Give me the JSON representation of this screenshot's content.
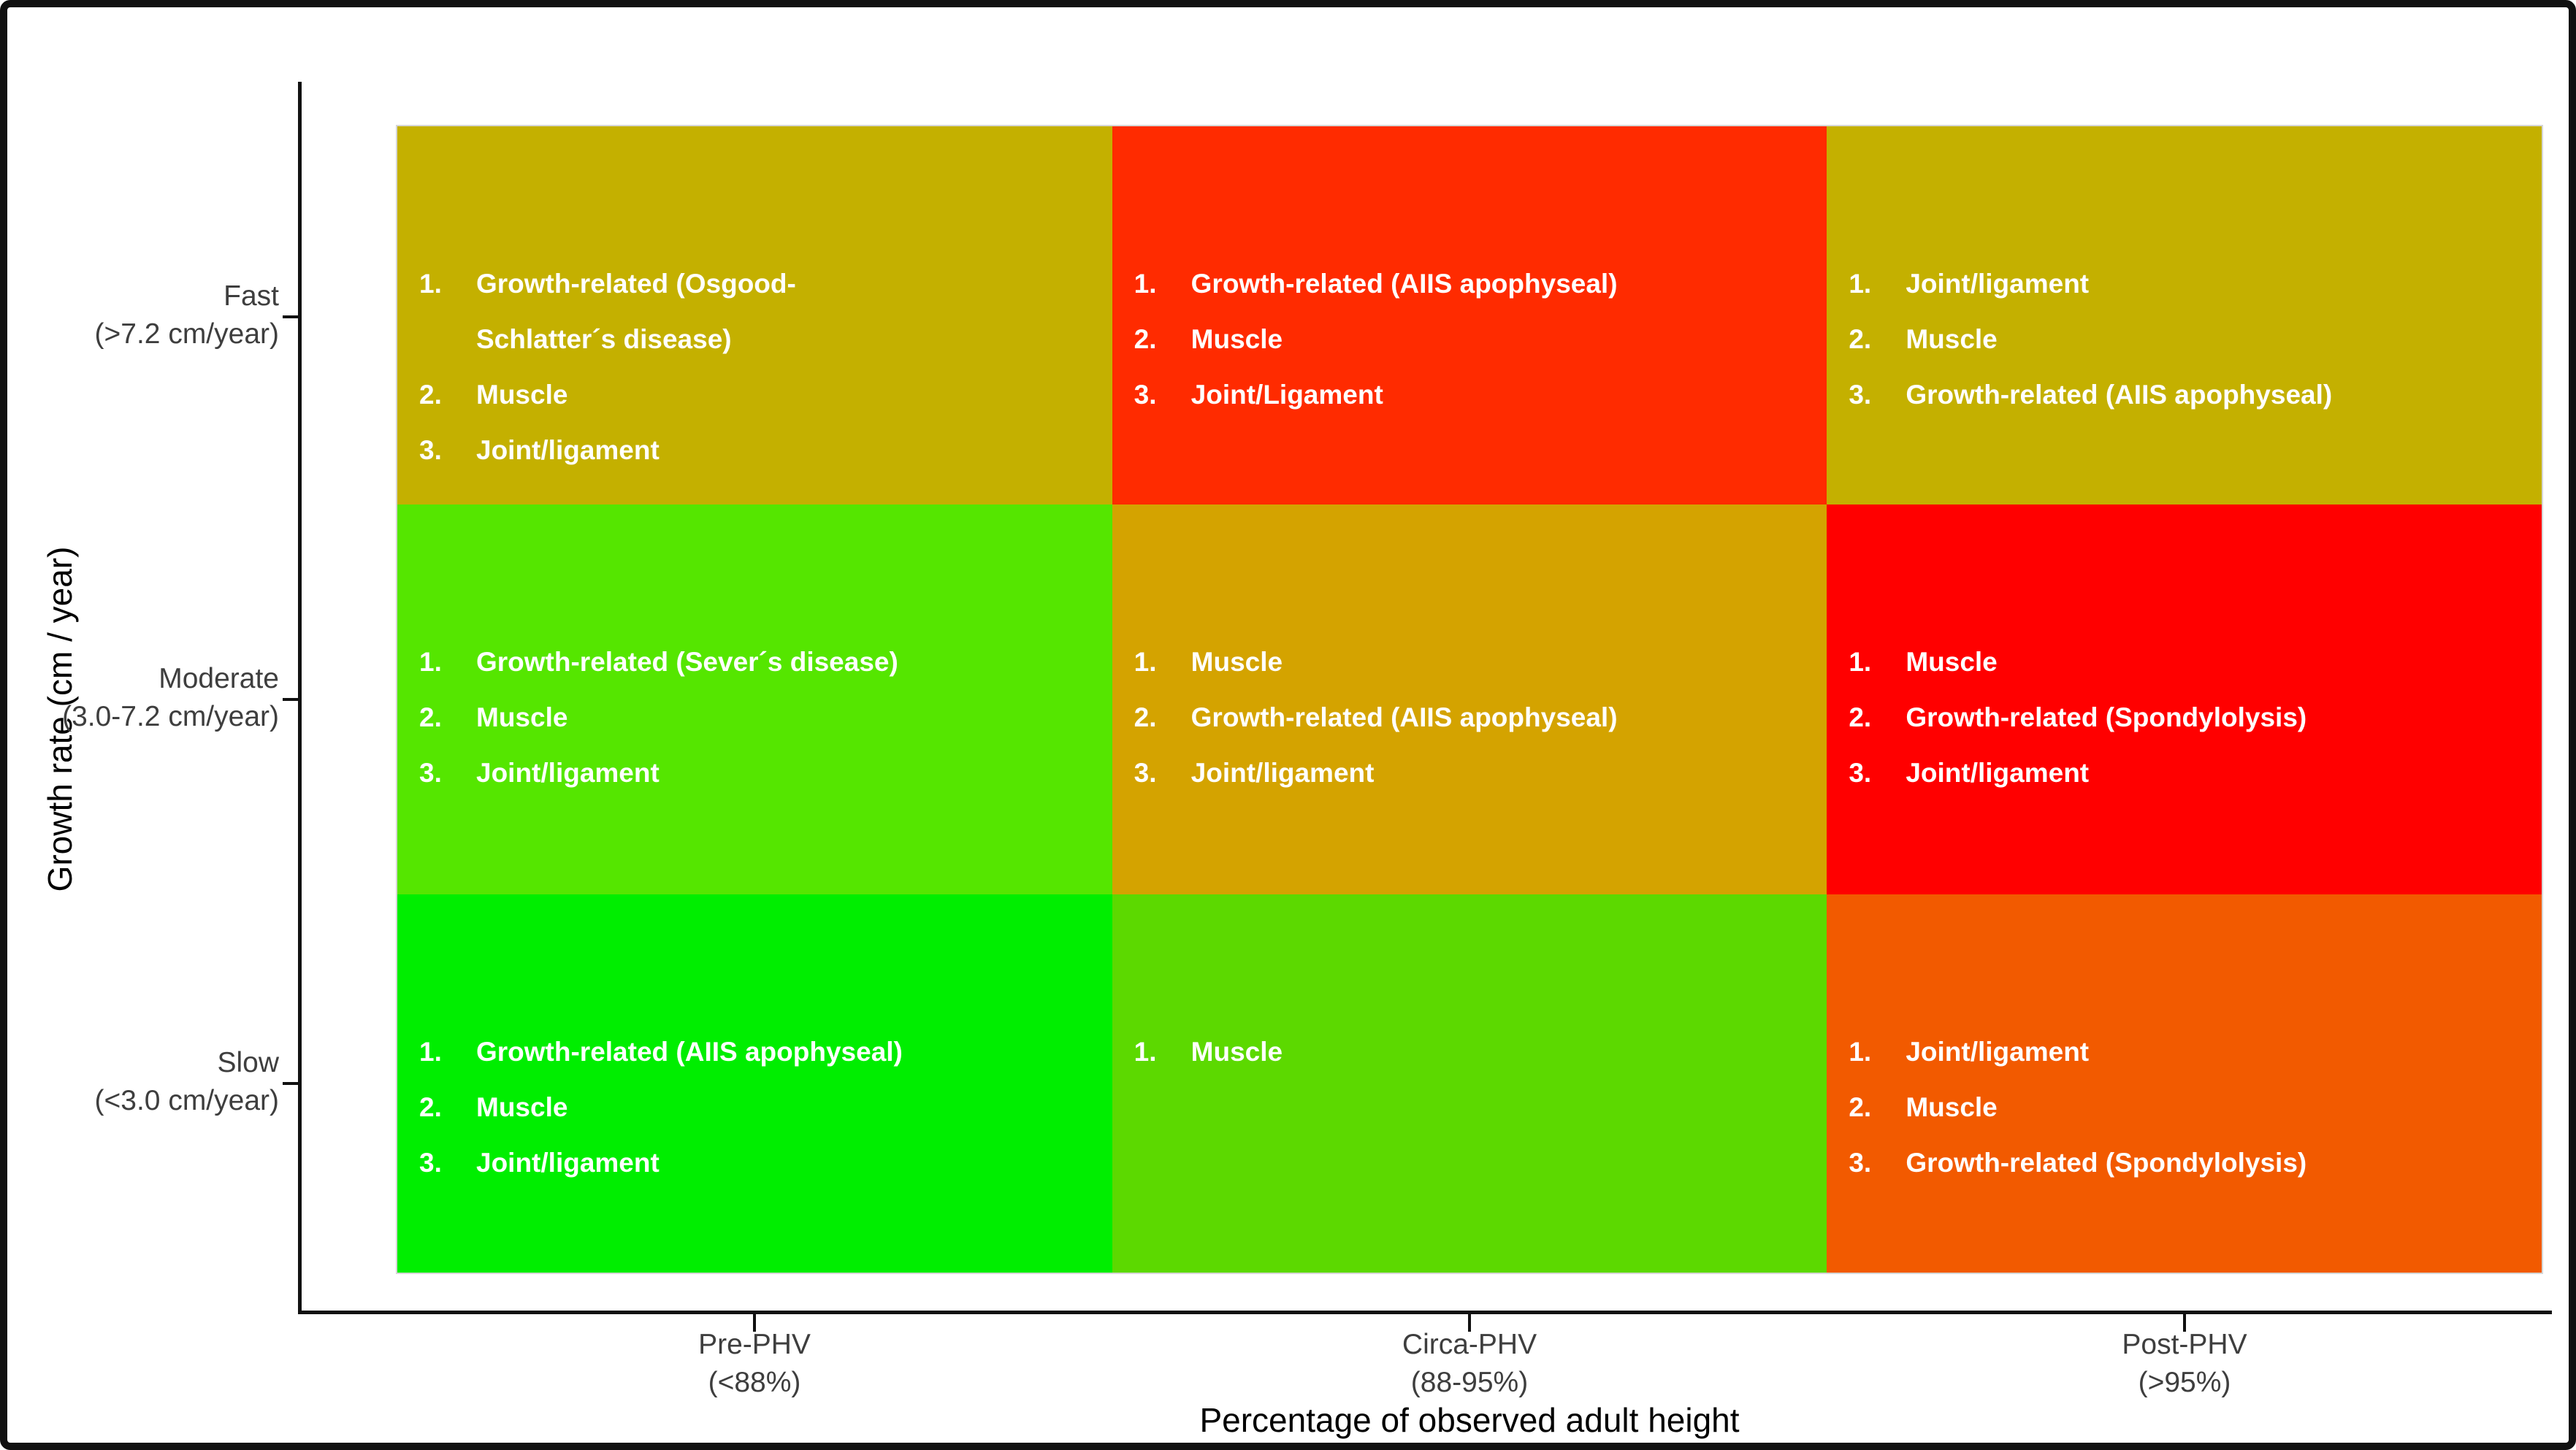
{
  "figure": {
    "x_axis": {
      "title": "Percentage of observed adult height",
      "ticks": [
        {
          "line1": "Pre-PHV",
          "line2": "(<88%)"
        },
        {
          "line1": "Circa-PHV",
          "line2": "(88-95%)"
        },
        {
          "line1": "Post-PHV",
          "line2": "(>95%)"
        }
      ]
    },
    "y_axis": {
      "title": "Growth rate (cm / year)",
      "ticks": [
        {
          "line1": "Fast",
          "line2": "(>7.2 cm/year)"
        },
        {
          "line1": "Moderate",
          "line2": "(3.0-7.2 cm/year)"
        },
        {
          "line1": "Slow",
          "line2": "(<3.0 cm/year)"
        }
      ]
    }
  },
  "chart_data": {
    "type": "heatmap",
    "title": "",
    "xlabel": "Percentage of observed adult height",
    "ylabel": "Growth rate (cm / year)",
    "x_categories": [
      "Pre-PHV (<88%)",
      "Circa-PHV (88-95%)",
      "Post-PHV (>95%)"
    ],
    "y_categories": [
      "Fast (>7.2 cm/year)",
      "Moderate (3.0-7.2 cm/year)",
      "Slow (<3.0 cm/year)"
    ],
    "legend": "none",
    "grid": "3x3 colored risk matrix, white bold ranked lists inside each cell",
    "cells": [
      {
        "row": 0,
        "col": 0,
        "y": "Fast",
        "x": "Pre-PHV",
        "color": "#C4B000",
        "items": [
          [
            "Growth-related (Osgood-",
            "Schlatter´s disease)"
          ],
          [
            "Muscle"
          ],
          [
            "Joint/ligament"
          ]
        ]
      },
      {
        "row": 0,
        "col": 1,
        "y": "Fast",
        "x": "Circa-PHV",
        "color": "#FF2B00",
        "items": [
          [
            "Growth-related (AIIS apophyseal)"
          ],
          [
            "Muscle"
          ],
          [
            "Joint/Ligament"
          ]
        ]
      },
      {
        "row": 0,
        "col": 2,
        "y": "Fast",
        "x": "Post-PHV",
        "color": "#C4B000",
        "items": [
          [
            "Joint/ligament"
          ],
          [
            "Muscle"
          ],
          [
            "Growth-related (AIIS apophyseal)"
          ]
        ]
      },
      {
        "row": 1,
        "col": 0,
        "y": "Moderate",
        "x": "Pre-PHV",
        "color": "#55E600",
        "items": [
          [
            "Growth-related (Sever´s disease)"
          ],
          [
            "Muscle"
          ],
          [
            "Joint/ligament"
          ]
        ]
      },
      {
        "row": 1,
        "col": 1,
        "y": "Moderate",
        "x": "Circa-PHV",
        "color": "#D4A300",
        "items": [
          [
            "Muscle"
          ],
          [
            "Growth-related (AIIS apophyseal)"
          ],
          [
            "Joint/ligament"
          ]
        ]
      },
      {
        "row": 1,
        "col": 2,
        "y": "Moderate",
        "x": "Post-PHV",
        "color": "#FF0000",
        "items": [
          [
            "Muscle"
          ],
          [
            "Growth-related (Spondylolysis)"
          ],
          [
            "Joint/ligament"
          ]
        ]
      },
      {
        "row": 2,
        "col": 0,
        "y": "Slow",
        "x": "Pre-PHV",
        "color": "#00EE00",
        "items": [
          [
            "Growth-related (AIIS apophyseal)"
          ],
          [
            "Muscle"
          ],
          [
            "Joint/ligament"
          ]
        ]
      },
      {
        "row": 2,
        "col": 1,
        "y": "Slow",
        "x": "Circa-PHV",
        "color": "#5CD900",
        "items": [
          [
            "Muscle"
          ]
        ]
      },
      {
        "row": 2,
        "col": 2,
        "y": "Slow",
        "x": "Post-PHV",
        "color": "#F25A00",
        "items": [
          [
            "Joint/ligament"
          ],
          [
            "Muscle"
          ],
          [
            "Growth-related (Spondylolysis)"
          ]
        ]
      }
    ]
  }
}
